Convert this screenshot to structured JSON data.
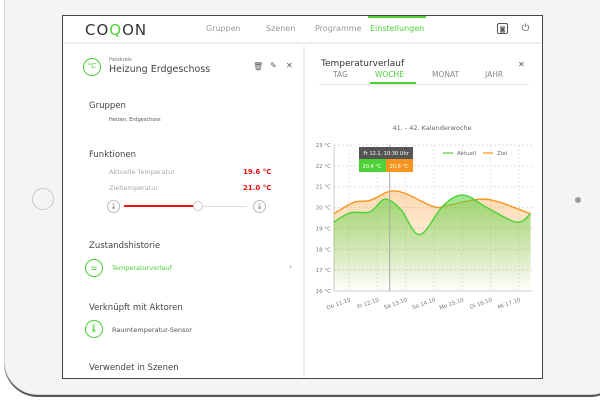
{
  "header": {
    "logo_prefix": "CO",
    "logo_mark": "Q",
    "logo_suffix": "ON",
    "nav": [
      "Gruppen",
      "Szenen",
      "Programme",
      "Einstellungen"
    ],
    "active_nav": "Einstellungen",
    "icons": [
      "camera-icon",
      "power-icon"
    ]
  },
  "detail": {
    "category": "Heizkreis",
    "title": "Heizung Erdgeschoss",
    "icon_text": "°C",
    "groups_heading": "Gruppen",
    "groups_value": "Heizen, Erdgeschoss",
    "functions_heading": "Funktionen",
    "current_label": "Aktuelle Temperatur",
    "current_value": "19.6 °C",
    "target_label": "Zieltemperatur",
    "target_value": "21.0 °C",
    "slider_level": 0.6,
    "history_heading": "Zustandshistorie",
    "history_item": "Temperaturverlauf",
    "actors_heading": "Verknüpft mit Aktoren",
    "actor_item": "Raumtemperatur-Sensor",
    "scenes_heading": "Verwendet in Szenen"
  },
  "panel": {
    "title": "Temperaturverlauf",
    "tabs": [
      "TAG",
      "WOCHE",
      "MONAT",
      "JAHR"
    ],
    "active_tab": "WOCHE"
  },
  "colors": {
    "accent": "#4cd137",
    "target": "#f7941d",
    "alert": "#ee1111"
  },
  "chart_data": {
    "type": "line",
    "title": "41. - 42. Kalenderwoche",
    "ylim": [
      16,
      23
    ],
    "grid": true,
    "legend": "top-right",
    "y_ticks": [
      "16 °C",
      "17 °C",
      "18 °C",
      "19 °C",
      "20 °C",
      "21 °C",
      "22 °C",
      "23 °C"
    ],
    "x_ticks": [
      "Do 11.10",
      "Fr 12.10",
      "Sa 13.10",
      "So 14.10",
      "Mo 15.10",
      "Di 16.10",
      "Mi 17.10"
    ],
    "series": [
      {
        "name": "Aktuell",
        "color": "#4cd137",
        "points": [
          [
            "10.10 11:00",
            19.3
          ],
          [
            "11.10 01:00",
            19.75
          ],
          [
            "11.10 18:00",
            19.8
          ],
          [
            "12.10 06:30",
            20.4
          ],
          [
            "12.10 20:00",
            19.9
          ],
          [
            "13.10 12:00",
            18.7
          ],
          [
            "14.10 08:00",
            20.1
          ],
          [
            "15.10 01:00",
            20.6
          ],
          [
            "15.10 21:00",
            20.0
          ],
          [
            "16.10 22:00",
            19.3
          ],
          [
            "17.10 10:00",
            19.7
          ]
        ]
      },
      {
        "name": "Ziel",
        "color": "#f7941d",
        "points": [
          [
            "10.10 11:00",
            19.7
          ],
          [
            "11.10 04:00",
            20.25
          ],
          [
            "11.10 18:00",
            20.35
          ],
          [
            "12.10 16:00",
            20.8
          ],
          [
            "13.10 23:30",
            20.05
          ],
          [
            "14.10 11:00",
            20.1
          ],
          [
            "15.10 15:00",
            20.4
          ],
          [
            "16.10 08:00",
            20.25
          ],
          [
            "17.10 10:00",
            19.7
          ]
        ]
      }
    ],
    "tooltip": {
      "label": "Fr 12.1. 10:30 Uhr",
      "time": "12.10 10:30",
      "aktuell": "20,4 °C",
      "ziel": "20,8 °C"
    }
  }
}
